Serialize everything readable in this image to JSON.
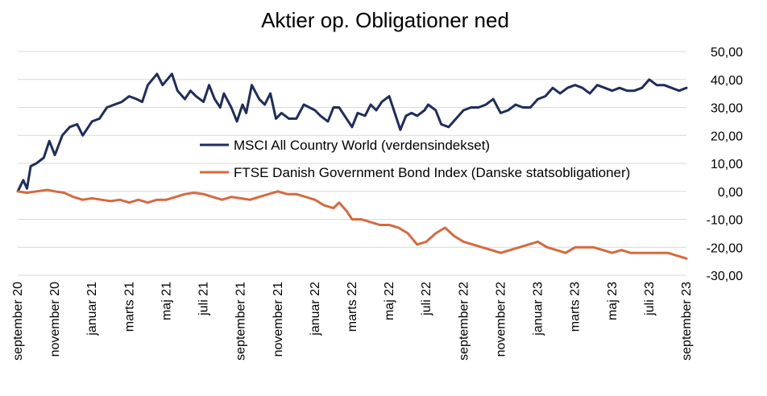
{
  "chart_data": {
    "type": "line",
    "title": "Aktier op. Obligationer ned",
    "xlabel": "",
    "ylabel": "",
    "x_tick_labels": [
      "september 20",
      "november 20",
      "januar 21",
      "marts 21",
      "maj 21",
      "juli 21",
      "september 21",
      "november 21",
      "januar 22",
      "marts 22",
      "maj 22",
      "juli 22",
      "september 22",
      "november 22",
      "januar 23",
      "marts 23",
      "maj 23",
      "juli 23",
      "september 23"
    ],
    "y_tick_labels": [
      "50,00",
      "40,00",
      "30,00",
      "20,00",
      "10,00",
      "0,00",
      "-10,00",
      "-20,00",
      "-30,00"
    ],
    "ylim": [
      -30,
      50
    ],
    "grid": true,
    "legend_position": "center",
    "series": [
      {
        "name": "MSCI All Country World (verdensindekset)",
        "color": "#1f2d5c",
        "points": [
          [
            0,
            0
          ],
          [
            0.3,
            4
          ],
          [
            0.5,
            1
          ],
          [
            0.7,
            9
          ],
          [
            1,
            10
          ],
          [
            1.4,
            12
          ],
          [
            1.7,
            18
          ],
          [
            2.0,
            13
          ],
          [
            2.4,
            20
          ],
          [
            2.8,
            23
          ],
          [
            3.2,
            24
          ],
          [
            3.5,
            20
          ],
          [
            4.0,
            25
          ],
          [
            4.4,
            26
          ],
          [
            4.8,
            30
          ],
          [
            5.2,
            31
          ],
          [
            5.6,
            32
          ],
          [
            6.0,
            34
          ],
          [
            6.4,
            33
          ],
          [
            6.7,
            32
          ],
          [
            7.0,
            38
          ],
          [
            7.5,
            42
          ],
          [
            7.8,
            38
          ],
          [
            8.3,
            42
          ],
          [
            8.6,
            36
          ],
          [
            9.0,
            33
          ],
          [
            9.3,
            36
          ],
          [
            9.6,
            34
          ],
          [
            10.0,
            32
          ],
          [
            10.3,
            38
          ],
          [
            10.6,
            33
          ],
          [
            10.9,
            30
          ],
          [
            11.1,
            35
          ],
          [
            11.5,
            30
          ],
          [
            11.8,
            25
          ],
          [
            12.1,
            31
          ],
          [
            12.3,
            28
          ],
          [
            12.6,
            38
          ],
          [
            13.0,
            33
          ],
          [
            13.3,
            31
          ],
          [
            13.6,
            35
          ],
          [
            13.9,
            26
          ],
          [
            14.2,
            28
          ],
          [
            14.6,
            26
          ],
          [
            15.0,
            26
          ],
          [
            15.4,
            31
          ],
          [
            15.7,
            30
          ],
          [
            16.0,
            29
          ],
          [
            16.3,
            27
          ],
          [
            16.7,
            25
          ],
          [
            17.0,
            30
          ],
          [
            17.3,
            30
          ],
          [
            17.7,
            26
          ],
          [
            18.0,
            23
          ],
          [
            18.3,
            28
          ],
          [
            18.7,
            27
          ],
          [
            19.0,
            31
          ],
          [
            19.3,
            29
          ],
          [
            19.6,
            32
          ],
          [
            20.0,
            34
          ],
          [
            20.3,
            28
          ],
          [
            20.6,
            22
          ],
          [
            20.9,
            27
          ],
          [
            21.2,
            28
          ],
          [
            21.5,
            27
          ],
          [
            21.9,
            29
          ],
          [
            22.1,
            31
          ],
          [
            22.5,
            29
          ],
          [
            22.8,
            24
          ],
          [
            23.2,
            23
          ],
          [
            23.6,
            26
          ],
          [
            24.0,
            29
          ],
          [
            24.4,
            30
          ],
          [
            24.8,
            30
          ],
          [
            25.2,
            31
          ],
          [
            25.6,
            33
          ],
          [
            26.0,
            28
          ],
          [
            26.4,
            29
          ],
          [
            26.8,
            31
          ],
          [
            27.2,
            30
          ],
          [
            27.6,
            30
          ],
          [
            28.0,
            33
          ],
          [
            28.4,
            34
          ],
          [
            28.8,
            37
          ],
          [
            29.2,
            35
          ],
          [
            29.6,
            37
          ],
          [
            30.0,
            38
          ],
          [
            30.4,
            37
          ],
          [
            30.8,
            35
          ],
          [
            31.2,
            38
          ],
          [
            31.6,
            37
          ],
          [
            32.0,
            36
          ],
          [
            32.4,
            37
          ],
          [
            32.8,
            36
          ],
          [
            33.2,
            36
          ],
          [
            33.6,
            37
          ],
          [
            34.0,
            40
          ],
          [
            34.4,
            38
          ],
          [
            34.8,
            38
          ],
          [
            35.2,
            37
          ],
          [
            35.6,
            36
          ],
          [
            36.0,
            37
          ]
        ]
      },
      {
        "name": "FTSE Danish Government Bond Index (Danske statsobligationer)",
        "color": "#d46a3f",
        "points": [
          [
            0,
            0
          ],
          [
            0.5,
            -0.5
          ],
          [
            1,
            0
          ],
          [
            1.6,
            0.5
          ],
          [
            2,
            0
          ],
          [
            2.5,
            -0.5
          ],
          [
            3,
            -2
          ],
          [
            3.5,
            -3
          ],
          [
            4,
            -2.5
          ],
          [
            4.5,
            -3
          ],
          [
            5,
            -3.5
          ],
          [
            5.5,
            -3
          ],
          [
            6,
            -4
          ],
          [
            6.5,
            -3
          ],
          [
            7,
            -4
          ],
          [
            7.5,
            -3
          ],
          [
            8,
            -3
          ],
          [
            8.5,
            -2
          ],
          [
            9,
            -1
          ],
          [
            9.5,
            -0.5
          ],
          [
            10,
            -1
          ],
          [
            10.5,
            -2
          ],
          [
            11,
            -3
          ],
          [
            11.5,
            -2
          ],
          [
            12,
            -2.5
          ],
          [
            12.5,
            -3
          ],
          [
            13,
            -2
          ],
          [
            13.5,
            -1
          ],
          [
            14,
            0
          ],
          [
            14.5,
            -1
          ],
          [
            15,
            -1
          ],
          [
            15.5,
            -2
          ],
          [
            16,
            -3
          ],
          [
            16.5,
            -5
          ],
          [
            17,
            -6
          ],
          [
            17.3,
            -4
          ],
          [
            17.7,
            -7
          ],
          [
            18.0,
            -10
          ],
          [
            18.5,
            -10
          ],
          [
            19.0,
            -11
          ],
          [
            19.5,
            -12
          ],
          [
            20.0,
            -12
          ],
          [
            20.5,
            -13
          ],
          [
            21.0,
            -15
          ],
          [
            21.5,
            -19
          ],
          [
            22.0,
            -18
          ],
          [
            22.5,
            -15
          ],
          [
            23.0,
            -13
          ],
          [
            23.5,
            -16
          ],
          [
            24.0,
            -18
          ],
          [
            24.5,
            -19
          ],
          [
            25.0,
            -20
          ],
          [
            25.5,
            -21
          ],
          [
            26.0,
            -22
          ],
          [
            26.5,
            -21
          ],
          [
            27.0,
            -20
          ],
          [
            27.5,
            -19
          ],
          [
            28.0,
            -18
          ],
          [
            28.5,
            -20
          ],
          [
            29.0,
            -21
          ],
          [
            29.5,
            -22
          ],
          [
            30.0,
            -20
          ],
          [
            30.5,
            -20
          ],
          [
            31.0,
            -20
          ],
          [
            31.5,
            -21
          ],
          [
            32.0,
            -22
          ],
          [
            32.5,
            -21
          ],
          [
            33.0,
            -22
          ],
          [
            33.5,
            -22
          ],
          [
            34.0,
            -22
          ],
          [
            34.5,
            -22
          ],
          [
            35.0,
            -22
          ],
          [
            35.5,
            -23
          ],
          [
            36.0,
            -24
          ]
        ]
      }
    ]
  }
}
